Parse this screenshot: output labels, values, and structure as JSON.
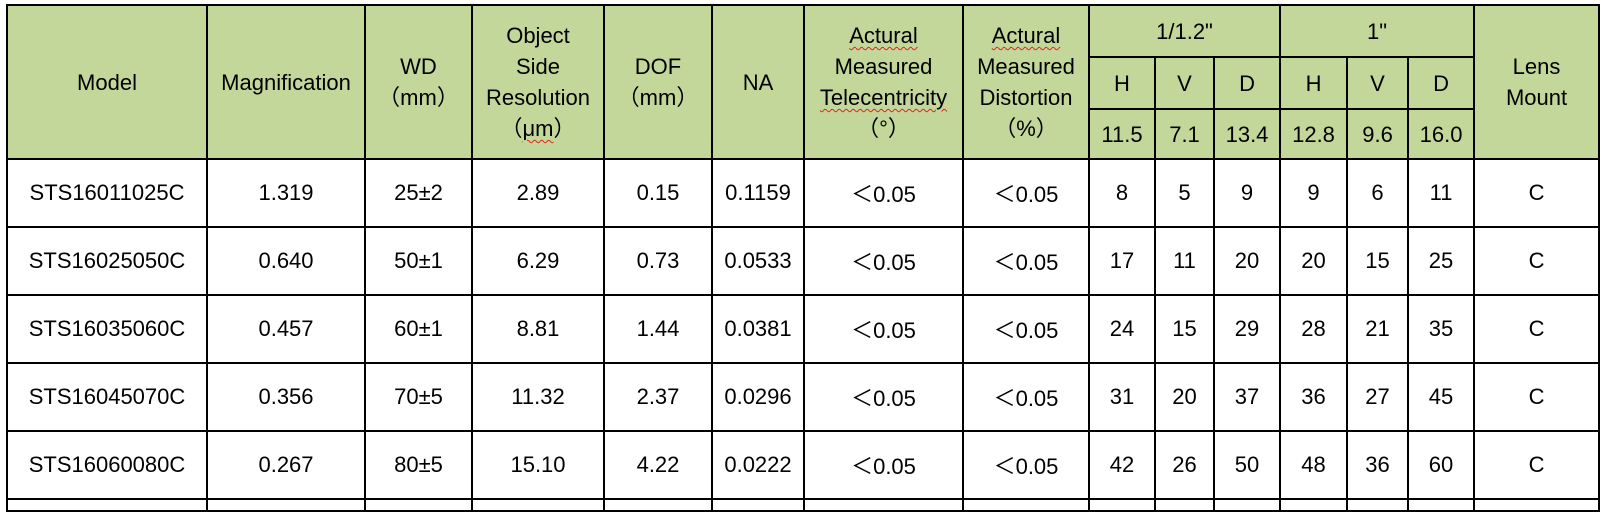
{
  "header": {
    "model": "Model",
    "magnification": "Magnification",
    "wd": [
      "WD",
      "（mm）"
    ],
    "resolution": [
      "Object",
      "Side",
      "Resolution",
      "（",
      "μm",
      "）"
    ],
    "dof": [
      "DOF",
      "（mm）"
    ],
    "na": "NA",
    "telecentricity": [
      "Actural",
      "Measured",
      "Telecentricity",
      "（°）"
    ],
    "distortion": [
      "Actural",
      "Measured",
      "Distortion",
      "（%）"
    ],
    "sensor_a": {
      "label": "1/1.2\"",
      "h": "H",
      "v": "V",
      "d": "D",
      "h_val": "11.5",
      "v_val": "7.1",
      "d_val": "13.4"
    },
    "sensor_b": {
      "label": "1\"",
      "h": "H",
      "v": "V",
      "d": "D",
      "h_val": "12.8",
      "v_val": "9.6",
      "d_val": "16.0"
    },
    "mount": [
      "Lens",
      "Mount"
    ]
  },
  "rows": [
    [
      "STS16011025C",
      "1.319",
      "25±2",
      "2.89",
      "0.15",
      "0.1159",
      "＜0.05",
      "＜0.05",
      "8",
      "5",
      "9",
      "9",
      "6",
      "11",
      "C"
    ],
    [
      "STS16025050C",
      "0.640",
      "50±1",
      "6.29",
      "0.73",
      "0.0533",
      "＜0.05",
      "＜0.05",
      "17",
      "11",
      "20",
      "20",
      "15",
      "25",
      "C"
    ],
    [
      "STS16035060C",
      "0.457",
      "60±1",
      "8.81",
      "1.44",
      "0.0381",
      "＜0.05",
      "＜0.05",
      "24",
      "15",
      "29",
      "28",
      "21",
      "35",
      "C"
    ],
    [
      "STS16045070C",
      "0.356",
      "70±5",
      "11.32",
      "2.37",
      "0.0296",
      "＜0.05",
      "＜0.05",
      "31",
      "20",
      "37",
      "36",
      "27",
      "45",
      "C"
    ],
    [
      "STS16060080C",
      "0.267",
      "80±5",
      "15.10",
      "4.22",
      "0.0222",
      "＜0.05",
      "＜0.05",
      "42",
      "26",
      "50",
      "48",
      "36",
      "60",
      "C"
    ]
  ]
}
